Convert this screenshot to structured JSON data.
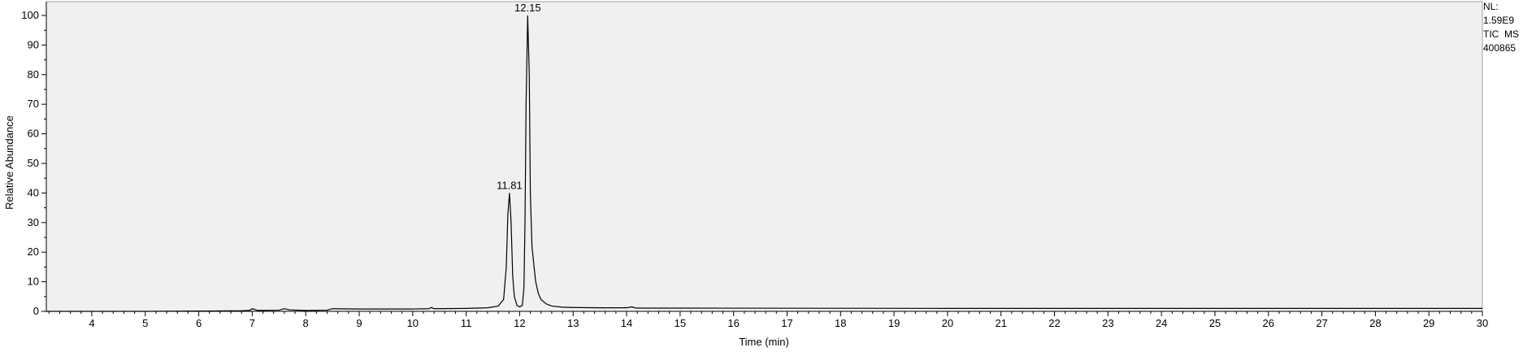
{
  "chart_data": {
    "type": "line",
    "title": "",
    "xlabel": "Time (min)",
    "ylabel": "Relative Abundance",
    "xlim": [
      3.15,
      30
    ],
    "ylim": [
      0,
      100
    ],
    "x_ticks": [
      4,
      5,
      6,
      7,
      8,
      9,
      10,
      11,
      12,
      13,
      14,
      15,
      16,
      17,
      18,
      19,
      20,
      21,
      22,
      23,
      24,
      25,
      26,
      27,
      28,
      29,
      30
    ],
    "y_ticks": [
      0,
      10,
      20,
      30,
      40,
      50,
      60,
      70,
      80,
      90,
      100
    ],
    "grid": false,
    "legend": "none",
    "peak_labels": [
      {
        "x": 11.81,
        "y": 40,
        "text": "11.81"
      },
      {
        "x": 12.15,
        "y": 100,
        "text": "12.15"
      }
    ],
    "series": [
      {
        "x": [
          3.15,
          4.0,
          5.0,
          6.0,
          6.8,
          6.95,
          7.0,
          7.1,
          7.5,
          7.6,
          7.7,
          8.0,
          8.4,
          8.5,
          9.0,
          10.0,
          10.3,
          10.35,
          10.4,
          11.0,
          11.4,
          11.6,
          11.7,
          11.75,
          11.78,
          11.81,
          11.84,
          11.87,
          11.9,
          11.95,
          12.0,
          12.05,
          12.08,
          12.1,
          12.12,
          12.15,
          12.18,
          12.2,
          12.23,
          12.27,
          12.3,
          12.35,
          12.4,
          12.5,
          12.6,
          12.8,
          13.0,
          13.5,
          14.0,
          14.1,
          14.15,
          14.2,
          15.0,
          20.0,
          25.0,
          30.0
        ],
        "y": [
          0.0,
          0.0,
          0.0,
          0.1,
          0.2,
          0.3,
          0.9,
          0.3,
          0.4,
          0.9,
          0.5,
          0.3,
          0.4,
          0.9,
          0.8,
          0.8,
          0.9,
          1.3,
          0.9,
          1.0,
          1.2,
          1.8,
          4.0,
          15.0,
          33.0,
          40.0,
          30.0,
          12.0,
          5.0,
          2.0,
          1.5,
          2.0,
          8.0,
          30.0,
          70.0,
          100.0,
          80.0,
          40.0,
          22.0,
          15.0,
          10.0,
          6.0,
          4.0,
          2.5,
          1.8,
          1.4,
          1.3,
          1.2,
          1.2,
          1.5,
          1.2,
          1.1,
          1.1,
          1.0,
          1.0,
          1.0
        ]
      }
    ]
  },
  "info_panel": {
    "nl_label": "NL:",
    "nl_value": "1.59E9",
    "trace": "TIC  MS",
    "sample": "400865"
  }
}
